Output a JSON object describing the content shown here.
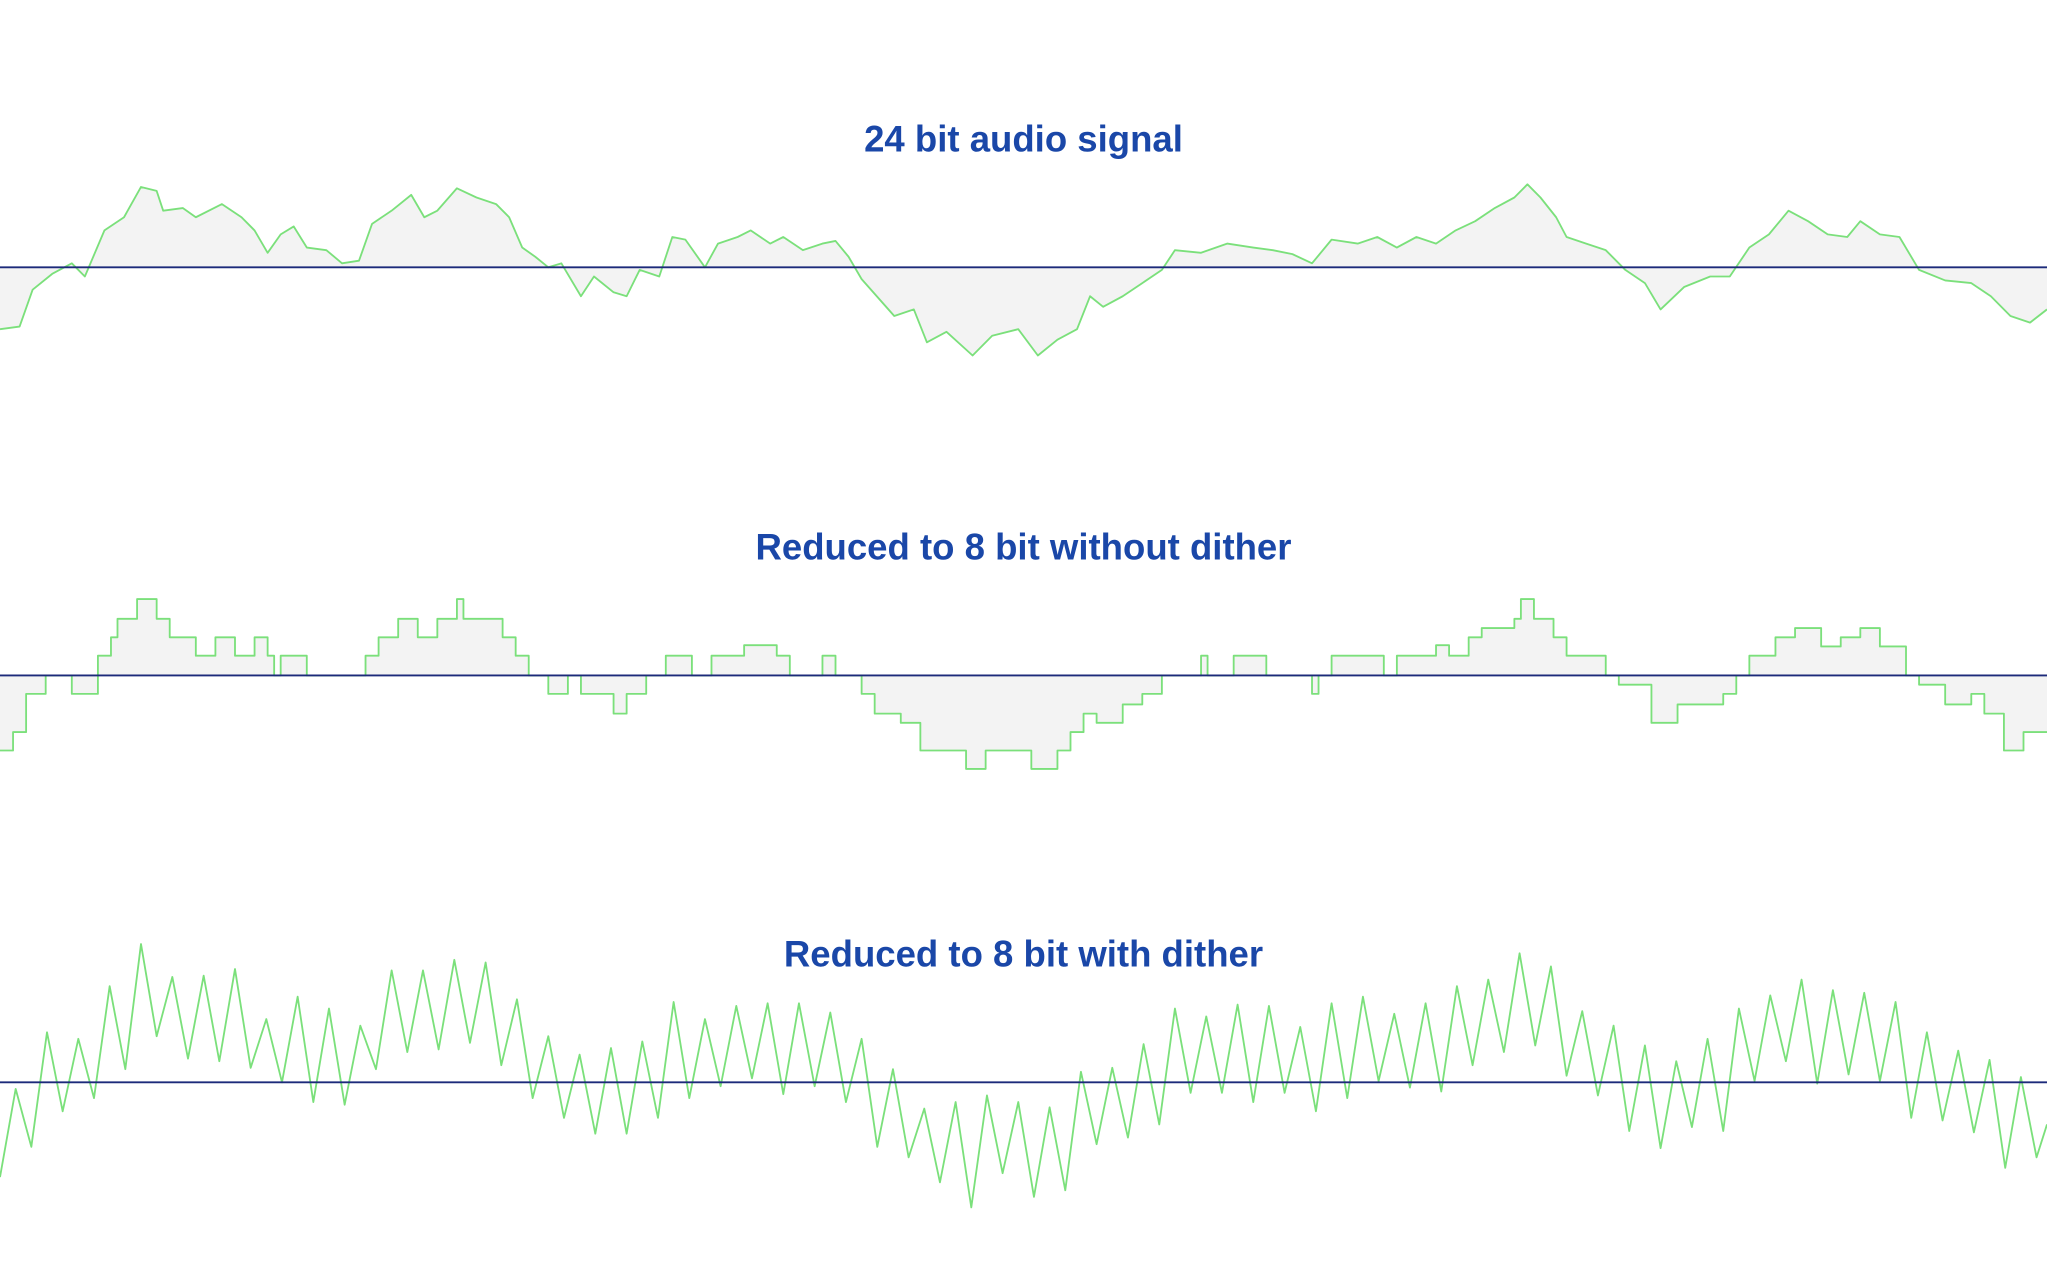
{
  "panels": [
    {
      "title": "24 bit audio signal"
    },
    {
      "title": "Reduced to 8 bit without dither"
    },
    {
      "title": "Reduced to 8 bit with dither"
    }
  ]
}
